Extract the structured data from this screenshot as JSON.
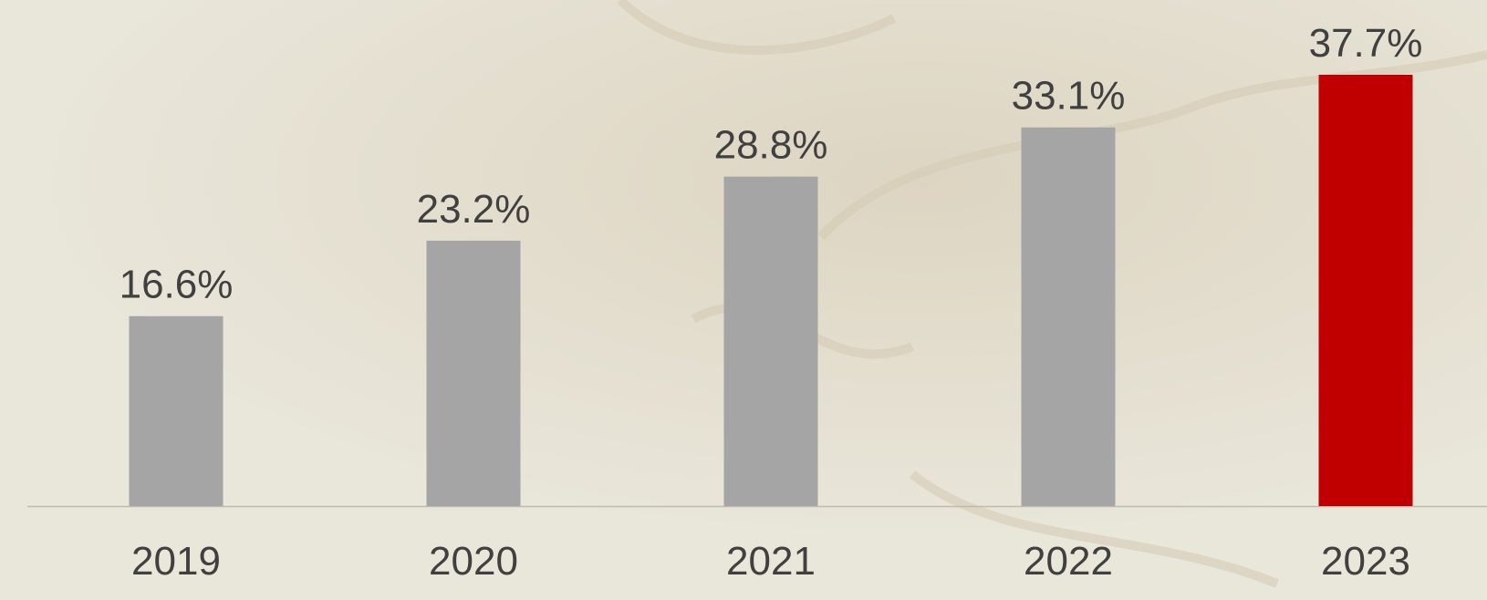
{
  "chart_data": {
    "type": "bar",
    "categories": [
      "2019",
      "2020",
      "2021",
      "2022",
      "2023"
    ],
    "values": [
      16.6,
      23.2,
      28.8,
      33.1,
      37.7
    ],
    "value_labels": [
      "16.6%",
      "23.2%",
      "28.8%",
      "33.1%",
      "37.7%"
    ],
    "colors": [
      "#a5a5a5",
      "#a5a5a5",
      "#a5a5a5",
      "#a5a5a5",
      "#c00000"
    ]
  }
}
